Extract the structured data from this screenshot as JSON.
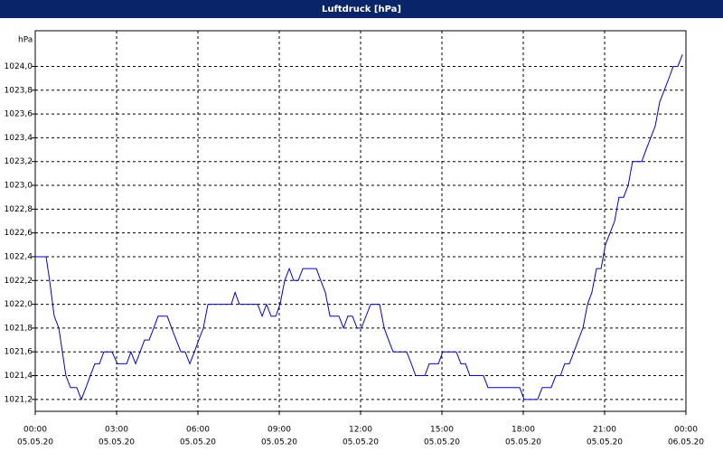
{
  "chart_data": {
    "type": "line",
    "title": "Luftdruck [hPa]",
    "y_unit": "hPa",
    "xlim": [
      0,
      24
    ],
    "ylim": [
      1021.1,
      1024.3
    ],
    "grid": true,
    "xticks": [
      {
        "value": 0,
        "label": "00:00"
      },
      {
        "value": 3,
        "label": "03:00"
      },
      {
        "value": 6,
        "label": "06:00"
      },
      {
        "value": 9,
        "label": "09:00"
      },
      {
        "value": 12,
        "label": "12:00"
      },
      {
        "value": 15,
        "label": "15:00"
      },
      {
        "value": 18,
        "label": "18:00"
      },
      {
        "value": 21,
        "label": "21:00"
      },
      {
        "value": 24,
        "label": "00:00"
      }
    ],
    "xtick_dates": [
      "05.05.20",
      "05.05.20",
      "05.05.20",
      "05.05.20",
      "05.05.20",
      "05.05.20",
      "05.05.20",
      "05.05.20",
      "06.05.20"
    ],
    "yticks": [
      {
        "value": 1021.2,
        "label": "1021,2"
      },
      {
        "value": 1021.4,
        "label": "1021,4"
      },
      {
        "value": 1021.6,
        "label": "1021,6"
      },
      {
        "value": 1021.8,
        "label": "1021,8"
      },
      {
        "value": 1022.0,
        "label": "1022,0"
      },
      {
        "value": 1022.2,
        "label": "1022,2"
      },
      {
        "value": 1022.4,
        "label": "1022,4"
      },
      {
        "value": 1022.6,
        "label": "1022,6"
      },
      {
        "value": 1022.8,
        "label": "1022,8"
      },
      {
        "value": 1023.0,
        "label": "1023,0"
      },
      {
        "value": 1023.2,
        "label": "1023,2"
      },
      {
        "value": 1023.4,
        "label": "1023,4"
      },
      {
        "value": 1023.6,
        "label": "1023,6"
      },
      {
        "value": 1023.8,
        "label": "1023,8"
      },
      {
        "value": 1024.0,
        "label": "1024,0"
      }
    ],
    "series": [
      {
        "color": "#0000cc",
        "x": [
          0,
          0.4,
          0.53,
          0.7,
          0.87,
          1,
          1.13,
          1.3,
          1.53,
          1.7,
          1.87,
          2.03,
          2.2,
          2.37,
          2.53,
          2.83,
          3.03,
          3.37,
          3.53,
          3.7,
          3.87,
          4.03,
          4.2,
          4.37,
          4.53,
          4.87,
          5.03,
          5.2,
          5.37,
          5.53,
          5.7,
          5.87,
          6.03,
          6.2,
          6.37,
          7.23,
          7.37,
          7.53,
          8.2,
          8.37,
          8.53,
          8.7,
          8.87,
          9.03,
          9.2,
          9.37,
          9.53,
          9.7,
          9.87,
          10.37,
          10.53,
          10.7,
          10.87,
          11.2,
          11.37,
          11.53,
          11.7,
          11.87,
          12.03,
          12.2,
          12.37,
          12.7,
          12.87,
          13.03,
          13.2,
          13.7,
          13.87,
          14.03,
          14.37,
          14.53,
          14.87,
          15.03,
          15.53,
          15.7,
          15.87,
          16.03,
          16.53,
          16.7,
          17.87,
          18.03,
          18.53,
          18.7,
          19.03,
          19.2,
          19.37,
          19.53,
          19.7,
          19.87,
          20.03,
          20.2,
          20.37,
          20.53,
          20.7,
          20.87,
          21.03,
          21.2,
          21.37,
          21.53,
          21.7,
          21.87,
          22.03,
          22.37,
          22.53,
          22.7,
          22.87,
          23.03,
          23.2,
          23.37,
          23.53,
          23.7,
          23.87
        ],
        "values": [
          1022.4,
          1022.4,
          1022.2,
          1021.9,
          1021.8,
          1021.6,
          1021.4,
          1021.3,
          1021.3,
          1021.2,
          1021.3,
          1021.4,
          1021.5,
          1021.5,
          1021.6,
          1021.6,
          1021.5,
          1021.5,
          1021.6,
          1021.5,
          1021.6,
          1021.7,
          1021.7,
          1021.8,
          1021.9,
          1021.9,
          1021.8,
          1021.7,
          1021.6,
          1021.6,
          1021.5,
          1021.6,
          1021.7,
          1021.8,
          1022.0,
          1022.0,
          1022.1,
          1022.0,
          1022.0,
          1021.9,
          1022.0,
          1021.9,
          1021.9,
          1022.0,
          1022.2,
          1022.3,
          1022.2,
          1022.2,
          1022.3,
          1022.3,
          1022.2,
          1022.1,
          1021.9,
          1021.9,
          1021.8,
          1021.9,
          1021.9,
          1021.8,
          1021.8,
          1021.9,
          1022.0,
          1022.0,
          1021.8,
          1021.7,
          1021.6,
          1021.6,
          1021.5,
          1021.4,
          1021.4,
          1021.5,
          1021.5,
          1021.6,
          1021.6,
          1021.5,
          1021.5,
          1021.4,
          1021.4,
          1021.3,
          1021.3,
          1021.2,
          1021.2,
          1021.3,
          1021.3,
          1021.4,
          1021.4,
          1021.5,
          1021.5,
          1021.6,
          1021.7,
          1021.8,
          1022.0,
          1022.1,
          1022.3,
          1022.3,
          1022.5,
          1022.6,
          1022.7,
          1022.9,
          1022.9,
          1023.0,
          1023.2,
          1023.2,
          1023.3,
          1023.4,
          1023.5,
          1023.7,
          1023.8,
          1023.9,
          1024.0,
          1024.0,
          1024.1
        ]
      }
    ]
  }
}
